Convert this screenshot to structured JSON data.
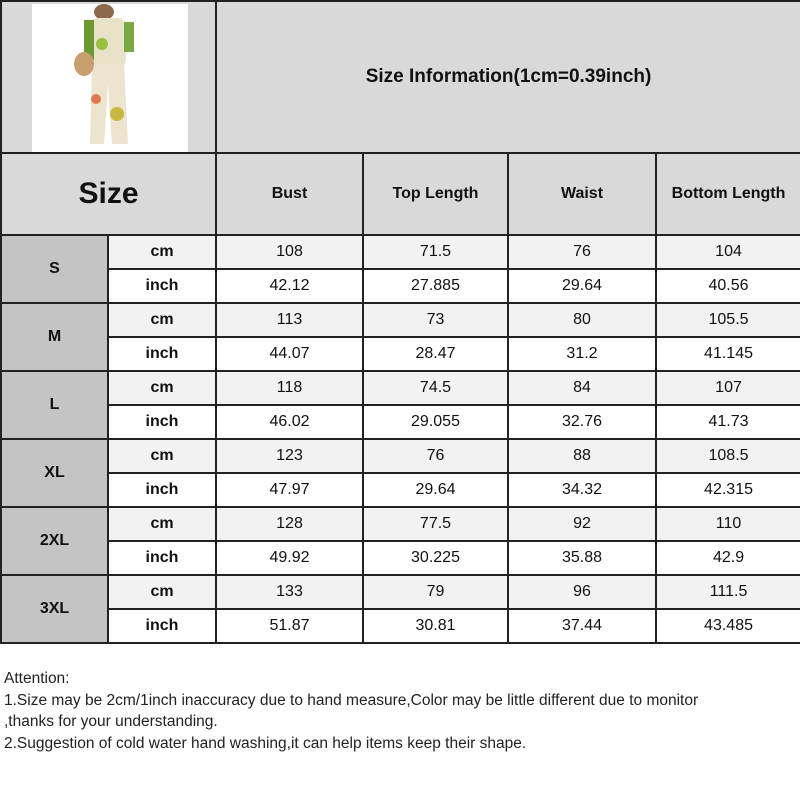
{
  "title": "Size Information(1cm=0.39inch)",
  "size_header": "Size",
  "columns": [
    "Bust",
    "Top Length",
    "Waist",
    "Bottom Length"
  ],
  "units": {
    "cm": "cm",
    "inch": "inch"
  },
  "rows": [
    {
      "size": "S",
      "cm": [
        "108",
        "71.5",
        "76",
        "104"
      ],
      "inch": [
        "42.12",
        "27.885",
        "29.64",
        "40.56"
      ]
    },
    {
      "size": "M",
      "cm": [
        "113",
        "73",
        "80",
        "105.5"
      ],
      "inch": [
        "44.07",
        "28.47",
        "31.2",
        "41.145"
      ]
    },
    {
      "size": "L",
      "cm": [
        "118",
        "74.5",
        "84",
        "107"
      ],
      "inch": [
        "46.02",
        "29.055",
        "32.76",
        "41.73"
      ]
    },
    {
      "size": "XL",
      "cm": [
        "123",
        "76",
        "88",
        "108.5"
      ],
      "inch": [
        "47.97",
        "29.64",
        "34.32",
        "42.315"
      ]
    },
    {
      "size": "2XL",
      "cm": [
        "128",
        "77.5",
        "92",
        "110"
      ],
      "inch": [
        "49.92",
        "30.225",
        "35.88",
        "42.9"
      ]
    },
    {
      "size": "3XL",
      "cm": [
        "133",
        "79",
        "96",
        "111.5"
      ],
      "inch": [
        "51.87",
        "30.81",
        "37.44",
        "43.485"
      ]
    }
  ],
  "notes": [
    "Attention:",
    "1.Size may be 2cm/1inch inaccuracy due to hand measure,Color may be little different due to monitor",
    ",thanks for your understanding.",
    "2.Suggestion of cold water hand washing,it can help items keep their shape."
  ]
}
